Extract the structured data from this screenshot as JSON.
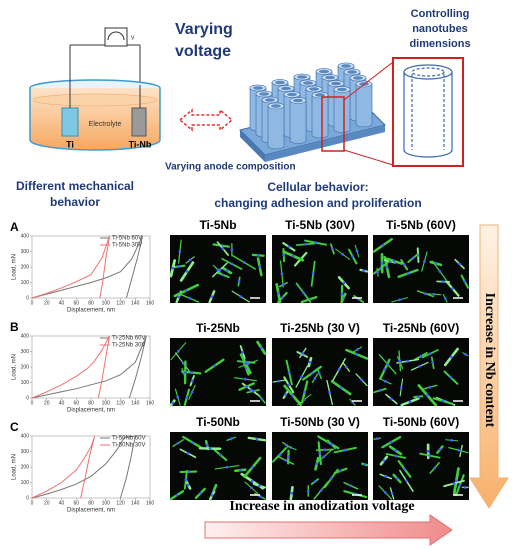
{
  "header": {
    "voltage_title_1": "Varying",
    "voltage_title_2": "voltage",
    "meter_label": "V",
    "electrolyte": "Electrolyte",
    "cathode": "Ti",
    "anode": "Ti-Nb",
    "dimensions_title_1": "Controlling",
    "dimensions_title_2": "nanotubes",
    "dimensions_title_3": "dimensions",
    "anode_composition": "Varying anode composition"
  },
  "mechanical_title_1": "Different mechanical",
  "mechanical_title_2": "behavior",
  "cellular_title": "Cellular behavior:",
  "cellular_subtitle": "changing adhesion and proliferation",
  "chart_data": [
    {
      "type": "line",
      "panel": "A",
      "xlabel": "Displacement, nm",
      "ylabel": "Load, mN",
      "xlim": [
        0,
        160
      ],
      "xticks": [
        0,
        20,
        40,
        60,
        80,
        100,
        120,
        140,
        160
      ],
      "ylim": [
        0,
        400
      ],
      "yticks": [
        0,
        100,
        200,
        300,
        400
      ],
      "series": [
        {
          "name": "Ti-5Nb 60V",
          "color": "#777777",
          "x": [
            0,
            20,
            40,
            60,
            80,
            100,
            120,
            135,
            150,
            143,
            135,
            128
          ],
          "values": [
            0,
            25,
            50,
            75,
            100,
            130,
            170,
            250,
            400,
            260,
            120,
            0
          ]
        },
        {
          "name": "Ti-5Nb 30V",
          "color": "#f07070",
          "x": [
            0,
            20,
            40,
            60,
            80,
            95,
            105,
            100,
            96,
            92
          ],
          "values": [
            0,
            30,
            65,
            105,
            150,
            260,
            400,
            250,
            110,
            0
          ]
        }
      ]
    },
    {
      "type": "line",
      "panel": "B",
      "xlabel": "Displacement, nm",
      "ylabel": "Load, mN",
      "xlim": [
        0,
        160
      ],
      "xticks": [
        0,
        20,
        40,
        60,
        80,
        100,
        120,
        140,
        160
      ],
      "ylim": [
        0,
        400
      ],
      "yticks": [
        0,
        100,
        200,
        300,
        400
      ],
      "series": [
        {
          "name": "Ti-25Nb 60V",
          "color": "#777777",
          "x": [
            0,
            20,
            40,
            60,
            80,
            100,
            120,
            140,
            155,
            148,
            140,
            132
          ],
          "values": [
            0,
            20,
            40,
            60,
            85,
            110,
            150,
            230,
            400,
            260,
            120,
            0
          ]
        },
        {
          "name": "Ti-25Nb 30V",
          "color": "#f07070",
          "x": [
            0,
            20,
            40,
            60,
            75,
            85,
            95,
            105,
            100,
            95,
            90
          ],
          "values": [
            0,
            40,
            85,
            140,
            190,
            240,
            310,
            400,
            260,
            120,
            0
          ]
        }
      ]
    },
    {
      "type": "line",
      "panel": "C",
      "xlabel": "Displacement, nm",
      "ylabel": "Load, mN",
      "xlim": [
        0,
        160
      ],
      "xticks": [
        0,
        20,
        40,
        60,
        80,
        100,
        120,
        140,
        160
      ],
      "ylim": [
        0,
        400
      ],
      "yticks": [
        0,
        100,
        200,
        300,
        400
      ],
      "series": [
        {
          "name": "Ti-50Nb 60V",
          "color": "#777777",
          "x": [
            0,
            20,
            40,
            60,
            80,
            100,
            115,
            125,
            140,
            135,
            128,
            120
          ],
          "values": [
            0,
            25,
            55,
            90,
            140,
            220,
            310,
            390,
            400,
            280,
            130,
            0
          ]
        },
        {
          "name": "Ti-50Nb 30V",
          "color": "#f07070",
          "x": [
            0,
            20,
            40,
            60,
            70,
            80,
            85,
            78,
            72,
            66
          ],
          "values": [
            0,
            45,
            100,
            180,
            250,
            330,
            400,
            270,
            130,
            0
          ]
        }
      ]
    }
  ],
  "cell_images": [
    [
      "Ti-5Nb",
      "Ti-5Nb (30V)",
      "Ti-5Nb (60V)"
    ],
    [
      "Ti-25Nb",
      "Ti-25Nb (30 V)",
      "Ti-25Nb (60V)"
    ],
    [
      "Ti-50Nb",
      "Ti-50Nb (30 V)",
      "Ti-50Nb (60V)"
    ]
  ],
  "nb_axis": "Increase in Nb content",
  "voltage_axis": "Increase in anodization voltage"
}
